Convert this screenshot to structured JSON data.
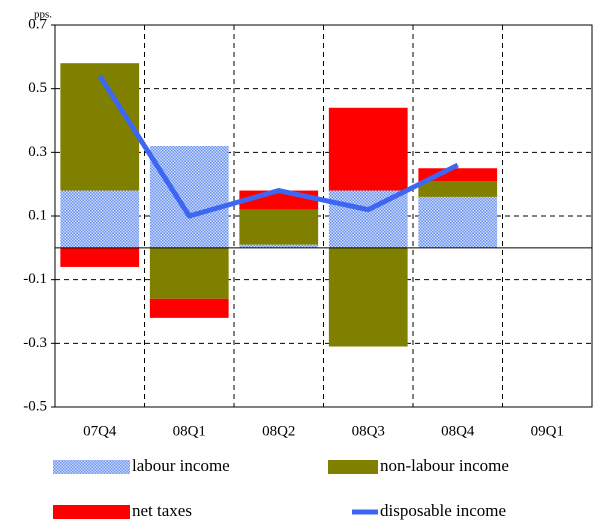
{
  "chart_data": {
    "type": "bar",
    "unit": "pps.",
    "categories": [
      "07Q4",
      "08Q1",
      "08Q2",
      "08Q3",
      "08Q4",
      "09Q1"
    ],
    "series": [
      {
        "name": "labour income",
        "color": "#5b86e8",
        "values": [
          0.18,
          0.32,
          0.01,
          0.18,
          0.16,
          null
        ]
      },
      {
        "name": "non-labour income",
        "color": "#808000",
        "values": [
          0.4,
          -0.16,
          0.11,
          -0.31,
          0.05,
          null
        ]
      },
      {
        "name": "net taxes",
        "color": "#ff0000",
        "values": [
          -0.06,
          -0.06,
          0.06,
          0.26,
          0.04,
          null
        ]
      },
      {
        "name": "disposable income",
        "color": "#3d67f2",
        "type": "line",
        "values": [
          0.54,
          0.1,
          0.18,
          0.12,
          0.26,
          null
        ]
      }
    ],
    "ylim": [
      -0.5,
      0.7
    ],
    "yticks": [
      0.7,
      0.5,
      0.3,
      0.1,
      -0.1,
      -0.3,
      -0.5
    ],
    "grid": true
  }
}
